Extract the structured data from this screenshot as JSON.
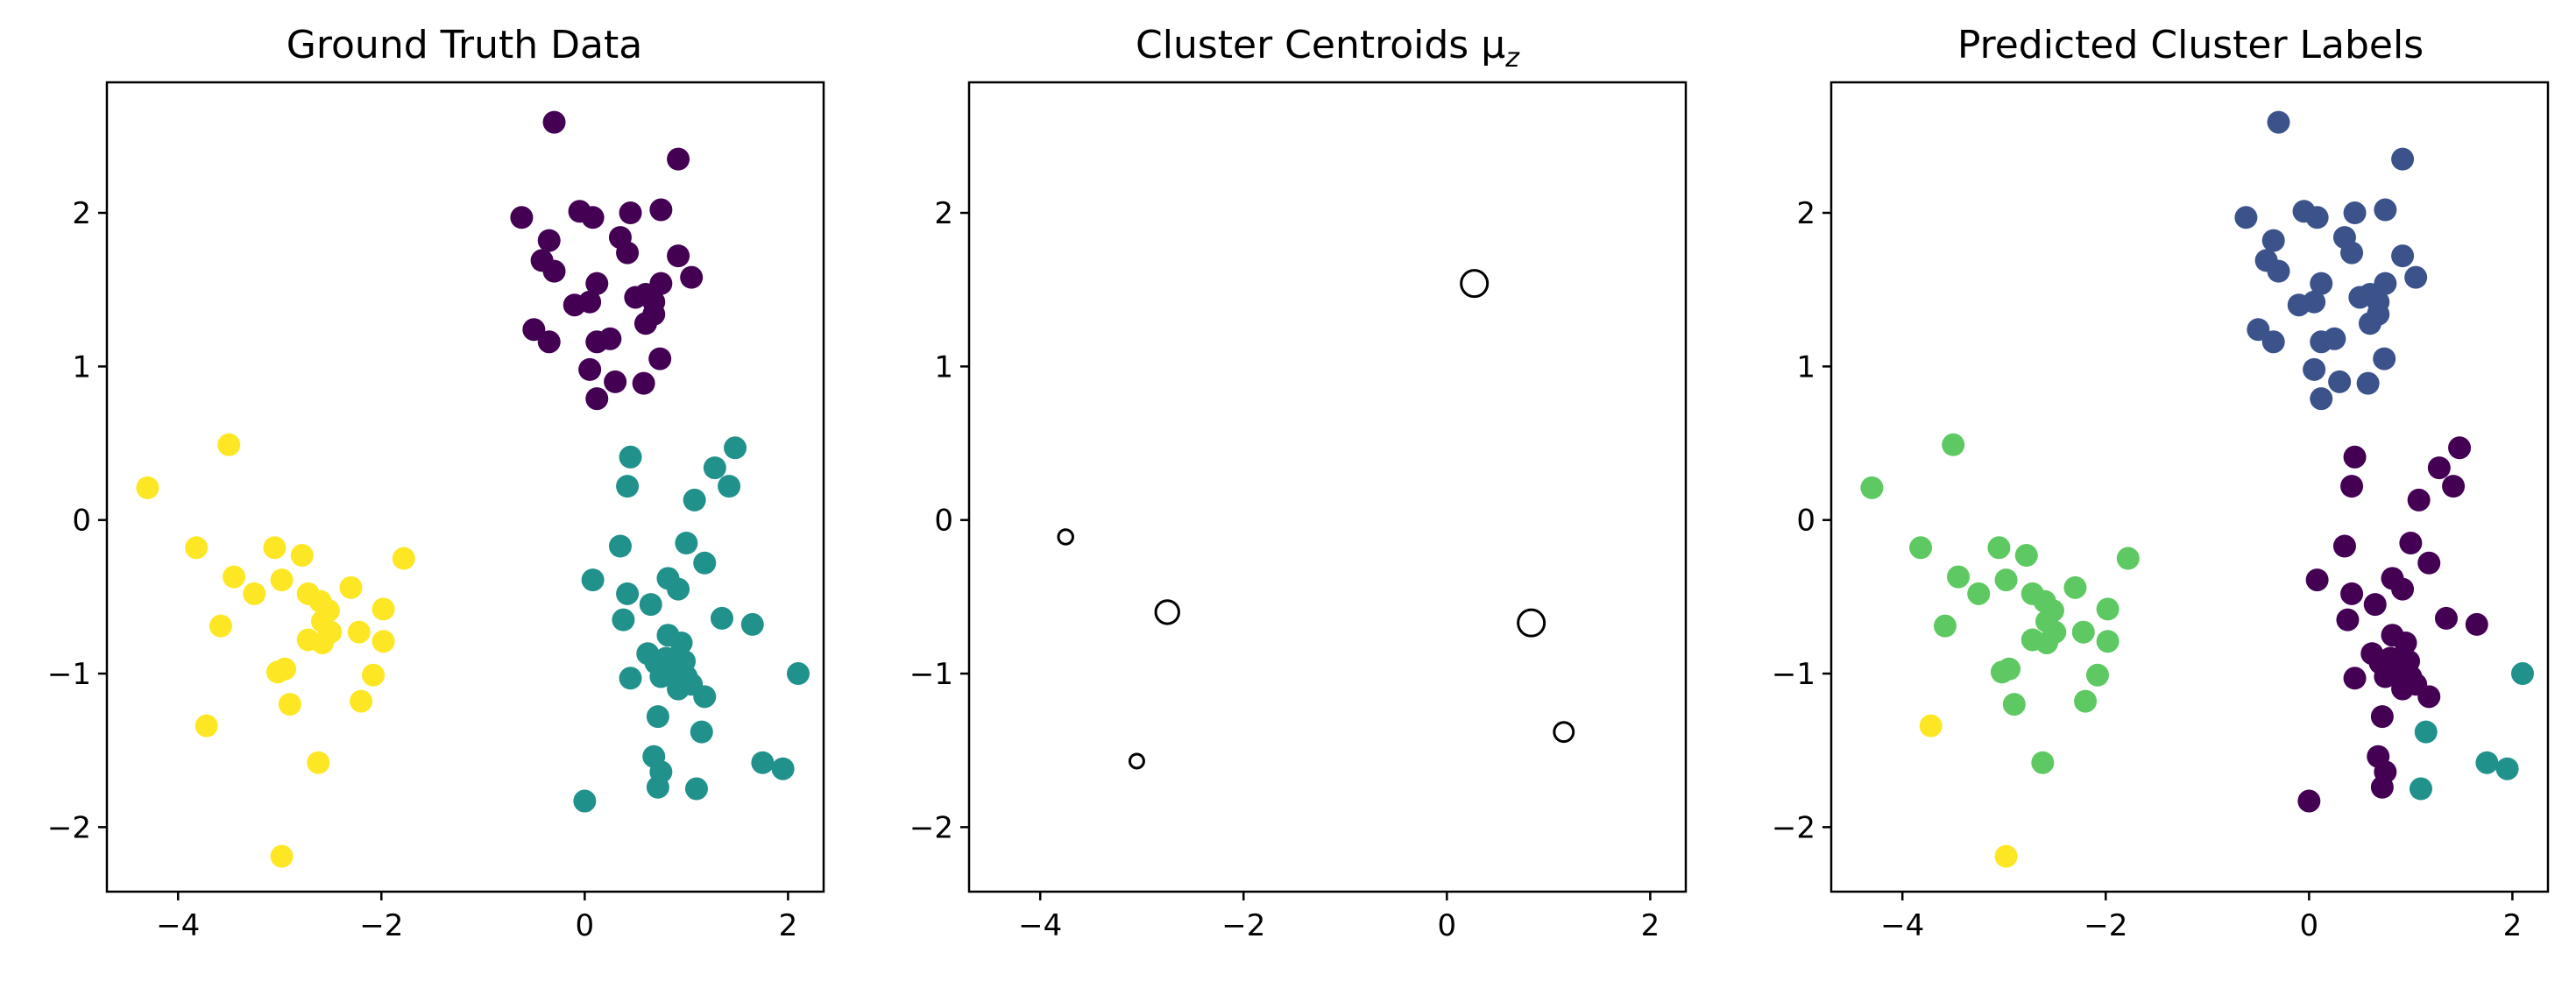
{
  "chart_data": [
    {
      "type": "scatter",
      "title": "Ground Truth Data",
      "xlabel": "",
      "ylabel": "",
      "xlim": [
        -4.7,
        2.35
      ],
      "ylim": [
        -2.42,
        2.85
      ],
      "xticks": [
        -4,
        -2,
        0,
        2
      ],
      "yticks": [
        -2,
        -1,
        0,
        1,
        2
      ],
      "xtick_labels": [
        "−4",
        "−2",
        "0",
        "2"
      ],
      "ytick_labels": [
        "−2",
        "−1",
        "0",
        "1",
        "2"
      ],
      "grid": false,
      "legend": "none",
      "series": [
        {
          "color": "#440154",
          "points": [
            [
              -0.3,
              2.59
            ],
            [
              0.92,
              2.35
            ],
            [
              -0.62,
              1.97
            ],
            [
              -0.05,
              2.01
            ],
            [
              0.08,
              1.97
            ],
            [
              0.45,
              2.0
            ],
            [
              0.75,
              2.02
            ],
            [
              -0.35,
              1.82
            ],
            [
              0.35,
              1.84
            ],
            [
              -0.42,
              1.69
            ],
            [
              0.42,
              1.74
            ],
            [
              0.92,
              1.72
            ],
            [
              -0.3,
              1.62
            ],
            [
              0.12,
              1.54
            ],
            [
              0.75,
              1.54
            ],
            [
              1.05,
              1.58
            ],
            [
              0.6,
              1.47
            ],
            [
              0.68,
              1.42
            ],
            [
              -0.1,
              1.4
            ],
            [
              0.05,
              1.42
            ],
            [
              0.5,
              1.45
            ],
            [
              0.68,
              1.34
            ],
            [
              0.6,
              1.28
            ],
            [
              -0.5,
              1.24
            ],
            [
              -0.35,
              1.16
            ],
            [
              0.12,
              1.16
            ],
            [
              0.25,
              1.18
            ],
            [
              0.74,
              1.05
            ],
            [
              0.05,
              0.98
            ],
            [
              0.3,
              0.9
            ],
            [
              0.58,
              0.89
            ],
            [
              0.12,
              0.79
            ]
          ]
        },
        {
          "color": "#21918c",
          "points": [
            [
              1.48,
              0.47
            ],
            [
              1.28,
              0.34
            ],
            [
              0.45,
              0.41
            ],
            [
              0.42,
              0.22
            ],
            [
              1.42,
              0.22
            ],
            [
              1.08,
              0.13
            ],
            [
              0.35,
              -0.17
            ],
            [
              1.0,
              -0.15
            ],
            [
              1.18,
              -0.28
            ],
            [
              0.08,
              -0.39
            ],
            [
              0.82,
              -0.38
            ],
            [
              0.92,
              -0.45
            ],
            [
              0.42,
              -0.48
            ],
            [
              0.65,
              -0.55
            ],
            [
              1.35,
              -0.64
            ],
            [
              1.65,
              -0.68
            ],
            [
              0.38,
              -0.65
            ],
            [
              0.82,
              -0.75
            ],
            [
              0.95,
              -0.8
            ],
            [
              0.62,
              -0.87
            ],
            [
              0.7,
              -0.93
            ],
            [
              0.8,
              -0.9
            ],
            [
              0.9,
              -0.9
            ],
            [
              0.85,
              -0.97
            ],
            [
              0.98,
              -0.92
            ],
            [
              1.0,
              -1.02
            ],
            [
              0.75,
              -1.02
            ],
            [
              0.45,
              -1.03
            ],
            [
              1.05,
              -1.07
            ],
            [
              0.92,
              -1.1
            ],
            [
              1.18,
              -1.15
            ],
            [
              2.1,
              -1.0
            ],
            [
              0.72,
              -1.28
            ],
            [
              1.15,
              -1.38
            ],
            [
              0.68,
              -1.54
            ],
            [
              0.75,
              -1.64
            ],
            [
              1.75,
              -1.58
            ],
            [
              1.95,
              -1.62
            ],
            [
              0.72,
              -1.74
            ],
            [
              1.1,
              -1.75
            ],
            [
              0.0,
              -1.83
            ]
          ]
        },
        {
          "color": "#fde725",
          "points": [
            [
              -4.3,
              0.21
            ],
            [
              -3.5,
              0.49
            ],
            [
              -3.82,
              -0.18
            ],
            [
              -3.05,
              -0.18
            ],
            [
              -2.78,
              -0.23
            ],
            [
              -1.78,
              -0.25
            ],
            [
              -3.45,
              -0.37
            ],
            [
              -2.98,
              -0.39
            ],
            [
              -3.25,
              -0.48
            ],
            [
              -2.72,
              -0.48
            ],
            [
              -2.3,
              -0.44
            ],
            [
              -2.6,
              -0.53
            ],
            [
              -2.52,
              -0.59
            ],
            [
              -1.98,
              -0.58
            ],
            [
              -2.58,
              -0.66
            ],
            [
              -3.58,
              -0.69
            ],
            [
              -2.5,
              -0.73
            ],
            [
              -2.22,
              -0.73
            ],
            [
              -2.72,
              -0.78
            ],
            [
              -2.58,
              -0.8
            ],
            [
              -1.98,
              -0.79
            ],
            [
              -2.95,
              -0.97
            ],
            [
              -3.02,
              -0.99
            ],
            [
              -2.08,
              -1.01
            ],
            [
              -2.9,
              -1.2
            ],
            [
              -2.2,
              -1.18
            ],
            [
              -3.72,
              -1.34
            ],
            [
              -2.62,
              -1.58
            ],
            [
              -2.98,
              -2.19
            ]
          ]
        }
      ]
    },
    {
      "type": "scatter",
      "title": "Cluster Centroids μ_z",
      "xlabel": "",
      "ylabel": "",
      "xlim": [
        -4.7,
        2.35
      ],
      "ylim": [
        -2.42,
        2.85
      ],
      "xticks": [
        -4,
        -2,
        0,
        2
      ],
      "yticks": [
        -2,
        -1,
        0,
        1,
        2
      ],
      "xtick_labels": [
        "−4",
        "−2",
        "0",
        "2"
      ],
      "ytick_labels": [
        "−2",
        "−1",
        "0",
        "1",
        "2"
      ],
      "grid": false,
      "legend": "none",
      "marker": "open circle, size proportional to cluster weight",
      "series": [
        {
          "color": "#000000",
          "points": [
            [
              0.27,
              1.54,
              1.0
            ],
            [
              -3.75,
              -0.11,
              0.25
            ],
            [
              -2.75,
              -0.6,
              0.8
            ],
            [
              0.83,
              -0.67,
              1.0
            ],
            [
              -3.05,
              -1.57,
              0.22
            ],
            [
              1.15,
              -1.38,
              0.55
            ]
          ]
        }
      ]
    },
    {
      "type": "scatter",
      "title": "Predicted Cluster Labels",
      "xlabel": "",
      "ylabel": "",
      "xlim": [
        -4.7,
        2.35
      ],
      "ylim": [
        -2.42,
        2.85
      ],
      "xticks": [
        -4,
        -2,
        0,
        2
      ],
      "yticks": [
        -2,
        -1,
        0,
        1,
        2
      ],
      "xtick_labels": [
        "−4",
        "−2",
        "0",
        "2"
      ],
      "ytick_labels": [
        "−2",
        "−1",
        "0",
        "1",
        "2"
      ],
      "grid": false,
      "legend": "none",
      "series": [
        {
          "color": "#3b528b",
          "points": [
            [
              -0.3,
              2.59
            ],
            [
              0.92,
              2.35
            ],
            [
              -0.62,
              1.97
            ],
            [
              -0.05,
              2.01
            ],
            [
              0.08,
              1.97
            ],
            [
              0.45,
              2.0
            ],
            [
              0.75,
              2.02
            ],
            [
              -0.35,
              1.82
            ],
            [
              0.35,
              1.84
            ],
            [
              -0.42,
              1.69
            ],
            [
              0.42,
              1.74
            ],
            [
              0.92,
              1.72
            ],
            [
              -0.3,
              1.62
            ],
            [
              0.12,
              1.54
            ],
            [
              0.75,
              1.54
            ],
            [
              1.05,
              1.58
            ],
            [
              0.6,
              1.47
            ],
            [
              0.68,
              1.42
            ],
            [
              -0.1,
              1.4
            ],
            [
              0.05,
              1.42
            ],
            [
              0.5,
              1.45
            ],
            [
              0.68,
              1.34
            ],
            [
              0.6,
              1.28
            ],
            [
              -0.5,
              1.24
            ],
            [
              -0.35,
              1.16
            ],
            [
              0.12,
              1.16
            ],
            [
              0.25,
              1.18
            ],
            [
              0.74,
              1.05
            ],
            [
              0.05,
              0.98
            ],
            [
              0.3,
              0.9
            ],
            [
              0.58,
              0.89
            ],
            [
              0.12,
              0.79
            ]
          ]
        },
        {
          "color": "#440154",
          "points": [
            [
              1.48,
              0.47
            ],
            [
              1.28,
              0.34
            ],
            [
              0.45,
              0.41
            ],
            [
              0.42,
              0.22
            ],
            [
              1.42,
              0.22
            ],
            [
              1.08,
              0.13
            ],
            [
              0.35,
              -0.17
            ],
            [
              1.0,
              -0.15
            ],
            [
              1.18,
              -0.28
            ],
            [
              0.08,
              -0.39
            ],
            [
              0.82,
              -0.38
            ],
            [
              0.92,
              -0.45
            ],
            [
              0.42,
              -0.48
            ],
            [
              0.65,
              -0.55
            ],
            [
              1.35,
              -0.64
            ],
            [
              1.65,
              -0.68
            ],
            [
              0.38,
              -0.65
            ],
            [
              0.82,
              -0.75
            ],
            [
              0.95,
              -0.8
            ],
            [
              0.62,
              -0.87
            ],
            [
              0.7,
              -0.93
            ],
            [
              0.8,
              -0.9
            ],
            [
              0.9,
              -0.9
            ],
            [
              0.85,
              -0.97
            ],
            [
              0.98,
              -0.92
            ],
            [
              1.0,
              -1.02
            ],
            [
              0.75,
              -1.02
            ],
            [
              0.45,
              -1.03
            ],
            [
              1.05,
              -1.07
            ],
            [
              0.92,
              -1.1
            ],
            [
              1.18,
              -1.15
            ],
            [
              0.72,
              -1.28
            ],
            [
              0.68,
              -1.54
            ],
            [
              0.75,
              -1.64
            ],
            [
              0.72,
              -1.74
            ],
            [
              0.0,
              -1.83
            ]
          ]
        },
        {
          "color": "#21918c",
          "points": [
            [
              2.1,
              -1.0
            ],
            [
              1.15,
              -1.38
            ],
            [
              1.75,
              -1.58
            ],
            [
              1.95,
              -1.62
            ],
            [
              1.1,
              -1.75
            ]
          ]
        },
        {
          "color": "#5ec962",
          "points": [
            [
              -4.3,
              0.21
            ],
            [
              -3.5,
              0.49
            ],
            [
              -3.82,
              -0.18
            ],
            [
              -3.05,
              -0.18
            ],
            [
              -2.78,
              -0.23
            ],
            [
              -1.78,
              -0.25
            ],
            [
              -3.45,
              -0.37
            ],
            [
              -2.98,
              -0.39
            ],
            [
              -3.25,
              -0.48
            ],
            [
              -2.72,
              -0.48
            ],
            [
              -2.3,
              -0.44
            ],
            [
              -2.6,
              -0.53
            ],
            [
              -2.52,
              -0.59
            ],
            [
              -1.98,
              -0.58
            ],
            [
              -2.58,
              -0.66
            ],
            [
              -3.58,
              -0.69
            ],
            [
              -2.5,
              -0.73
            ],
            [
              -2.22,
              -0.73
            ],
            [
              -2.72,
              -0.78
            ],
            [
              -2.58,
              -0.8
            ],
            [
              -1.98,
              -0.79
            ],
            [
              -2.95,
              -0.97
            ],
            [
              -3.02,
              -0.99
            ],
            [
              -2.08,
              -1.01
            ],
            [
              -2.9,
              -1.2
            ],
            [
              -2.2,
              -1.18
            ],
            [
              -2.62,
              -1.58
            ]
          ]
        },
        {
          "color": "#fde725",
          "points": [
            [
              -3.72,
              -1.34
            ],
            [
              -2.98,
              -2.19
            ]
          ]
        }
      ]
    }
  ]
}
